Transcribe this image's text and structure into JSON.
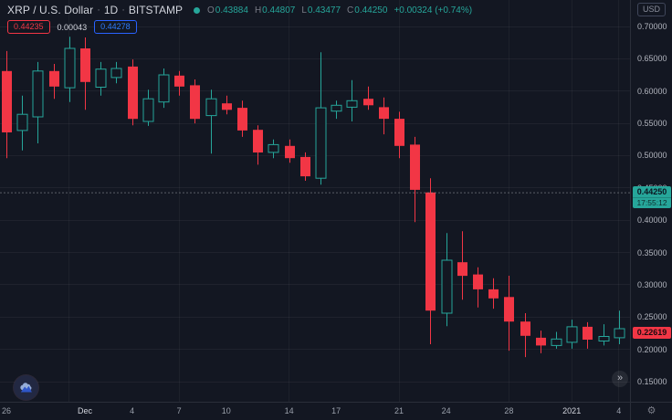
{
  "header": {
    "symbol": "XRP / U.S. Dollar",
    "sep": "·",
    "interval": "1D",
    "exchange": "BITSTAMP",
    "ohlc": [
      {
        "k": "O",
        "v": "0.43884"
      },
      {
        "k": "H",
        "v": "0.44807"
      },
      {
        "k": "L",
        "v": "0.43477"
      },
      {
        "k": "C",
        "v": "0.44250"
      }
    ],
    "change": "+0.00324 (+0.74%)",
    "bid": "0.44235",
    "spread": "0.00043",
    "ask": "0.44278"
  },
  "price_axis": {
    "currency": "USD",
    "ticks": [
      "0.70000",
      "0.65000",
      "0.60000",
      "0.55000",
      "0.50000",
      "0.45000",
      "0.40000",
      "0.35000",
      "0.30000",
      "0.25000",
      "0.20000",
      "0.15000"
    ],
    "last_price": "0.44250",
    "countdown": "17:55:12",
    "last_close": "0.22619"
  },
  "time_axis": {
    "labels": [
      {
        "text": "26",
        "i": 0,
        "strong": false
      },
      {
        "text": "Dec",
        "i": 5,
        "strong": true
      },
      {
        "text": "4",
        "i": 8,
        "strong": false
      },
      {
        "text": "7",
        "i": 11,
        "strong": false
      },
      {
        "text": "10",
        "i": 14,
        "strong": false
      },
      {
        "text": "14",
        "i": 18,
        "strong": false
      },
      {
        "text": "17",
        "i": 21,
        "strong": false
      },
      {
        "text": "21",
        "i": 25,
        "strong": false
      },
      {
        "text": "24",
        "i": 28,
        "strong": false
      },
      {
        "text": "28",
        "i": 32,
        "strong": false
      },
      {
        "text": "2021",
        "i": 36,
        "strong": true
      },
      {
        "text": "4",
        "i": 39,
        "strong": false
      }
    ]
  },
  "controls": {
    "scroll_to_recent": "»",
    "settings_icon": "gear-icon"
  },
  "colors": {
    "background": "#131722",
    "up": "#26a69a",
    "down": "#f23645",
    "text": "#d1d4dc",
    "muted": "#787b86",
    "blue": "#2962ff",
    "grid": "rgba(255,255,255,0.05)",
    "price_line": "#9598a1"
  },
  "chart_data": {
    "type": "candlestick",
    "title": "XRP / U.S. Dollar 1D BITSTAMP",
    "ylabel": "Price (USD)",
    "ylim": [
      0.15,
      0.7
    ],
    "grid": true,
    "current_price": 0.4425,
    "last_bar_close": 0.22619,
    "week_grid_indices": [
      4,
      11,
      18,
      25,
      32,
      36,
      39
    ],
    "candles": [
      {
        "date": "2020-11-26",
        "o": 0.631,
        "h": 0.662,
        "l": 0.496,
        "c": 0.536
      },
      {
        "date": "2020-11-27",
        "o": 0.539,
        "h": 0.593,
        "l": 0.508,
        "c": 0.564
      },
      {
        "date": "2020-11-28",
        "o": 0.56,
        "h": 0.645,
        "l": 0.519,
        "c": 0.631
      },
      {
        "date": "2020-11-29",
        "o": 0.631,
        "h": 0.642,
        "l": 0.588,
        "c": 0.607
      },
      {
        "date": "2020-11-30",
        "o": 0.605,
        "h": 0.684,
        "l": 0.583,
        "c": 0.666
      },
      {
        "date": "2020-12-01",
        "o": 0.666,
        "h": 0.683,
        "l": 0.571,
        "c": 0.614
      },
      {
        "date": "2020-12-02",
        "o": 0.606,
        "h": 0.645,
        "l": 0.593,
        "c": 0.634
      },
      {
        "date": "2020-12-03",
        "o": 0.621,
        "h": 0.645,
        "l": 0.612,
        "c": 0.635
      },
      {
        "date": "2020-12-04",
        "o": 0.638,
        "h": 0.649,
        "l": 0.547,
        "c": 0.557
      },
      {
        "date": "2020-12-05",
        "o": 0.553,
        "h": 0.602,
        "l": 0.546,
        "c": 0.588
      },
      {
        "date": "2020-12-06",
        "o": 0.583,
        "h": 0.635,
        "l": 0.574,
        "c": 0.625
      },
      {
        "date": "2020-12-07",
        "o": 0.624,
        "h": 0.631,
        "l": 0.593,
        "c": 0.607
      },
      {
        "date": "2020-12-08",
        "o": 0.609,
        "h": 0.618,
        "l": 0.55,
        "c": 0.557
      },
      {
        "date": "2020-12-09",
        "o": 0.562,
        "h": 0.602,
        "l": 0.503,
        "c": 0.588
      },
      {
        "date": "2020-12-10",
        "o": 0.581,
        "h": 0.593,
        "l": 0.564,
        "c": 0.571
      },
      {
        "date": "2020-12-11",
        "o": 0.574,
        "h": 0.585,
        "l": 0.529,
        "c": 0.539
      },
      {
        "date": "2020-12-12",
        "o": 0.54,
        "h": 0.547,
        "l": 0.486,
        "c": 0.505
      },
      {
        "date": "2020-12-13",
        "o": 0.505,
        "h": 0.525,
        "l": 0.496,
        "c": 0.517
      },
      {
        "date": "2020-12-14",
        "o": 0.515,
        "h": 0.525,
        "l": 0.489,
        "c": 0.496
      },
      {
        "date": "2020-12-15",
        "o": 0.498,
        "h": 0.505,
        "l": 0.461,
        "c": 0.468
      },
      {
        "date": "2020-12-16",
        "o": 0.465,
        "h": 0.66,
        "l": 0.455,
        "c": 0.574
      },
      {
        "date": "2020-12-17",
        "o": 0.569,
        "h": 0.585,
        "l": 0.557,
        "c": 0.578
      },
      {
        "date": "2020-12-18",
        "o": 0.575,
        "h": 0.617,
        "l": 0.553,
        "c": 0.585
      },
      {
        "date": "2020-12-19",
        "o": 0.588,
        "h": 0.607,
        "l": 0.571,
        "c": 0.578
      },
      {
        "date": "2020-12-20",
        "o": 0.575,
        "h": 0.59,
        "l": 0.533,
        "c": 0.557
      },
      {
        "date": "2020-12-21",
        "o": 0.557,
        "h": 0.568,
        "l": 0.496,
        "c": 0.515
      },
      {
        "date": "2020-12-22",
        "o": 0.517,
        "h": 0.529,
        "l": 0.397,
        "c": 0.447
      },
      {
        "date": "2020-12-23",
        "o": 0.443,
        "h": 0.465,
        "l": 0.208,
        "c": 0.26
      },
      {
        "date": "2020-12-24",
        "o": 0.256,
        "h": 0.38,
        "l": 0.236,
        "c": 0.338
      },
      {
        "date": "2020-12-25",
        "o": 0.335,
        "h": 0.383,
        "l": 0.277,
        "c": 0.314
      },
      {
        "date": "2020-12-26",
        "o": 0.316,
        "h": 0.327,
        "l": 0.265,
        "c": 0.293
      },
      {
        "date": "2020-12-27",
        "o": 0.293,
        "h": 0.31,
        "l": 0.263,
        "c": 0.279
      },
      {
        "date": "2020-12-28",
        "o": 0.281,
        "h": 0.314,
        "l": 0.198,
        "c": 0.243
      },
      {
        "date": "2020-12-29",
        "o": 0.243,
        "h": 0.256,
        "l": 0.188,
        "c": 0.221
      },
      {
        "date": "2020-12-30",
        "o": 0.218,
        "h": 0.229,
        "l": 0.194,
        "c": 0.206
      },
      {
        "date": "2020-12-31",
        "o": 0.206,
        "h": 0.227,
        "l": 0.201,
        "c": 0.216
      },
      {
        "date": "2021-01-01",
        "o": 0.211,
        "h": 0.246,
        "l": 0.201,
        "c": 0.235
      },
      {
        "date": "2021-01-02",
        "o": 0.235,
        "h": 0.242,
        "l": 0.201,
        "c": 0.215
      },
      {
        "date": "2021-01-03",
        "o": 0.213,
        "h": 0.239,
        "l": 0.206,
        "c": 0.22
      },
      {
        "date": "2021-01-04",
        "o": 0.218,
        "h": 0.26,
        "l": 0.208,
        "c": 0.232
      },
      {
        "date": "2021-01-05",
        "o": 0.234,
        "h": 0.244,
        "l": 0.206,
        "c": 0.226
      }
    ]
  }
}
